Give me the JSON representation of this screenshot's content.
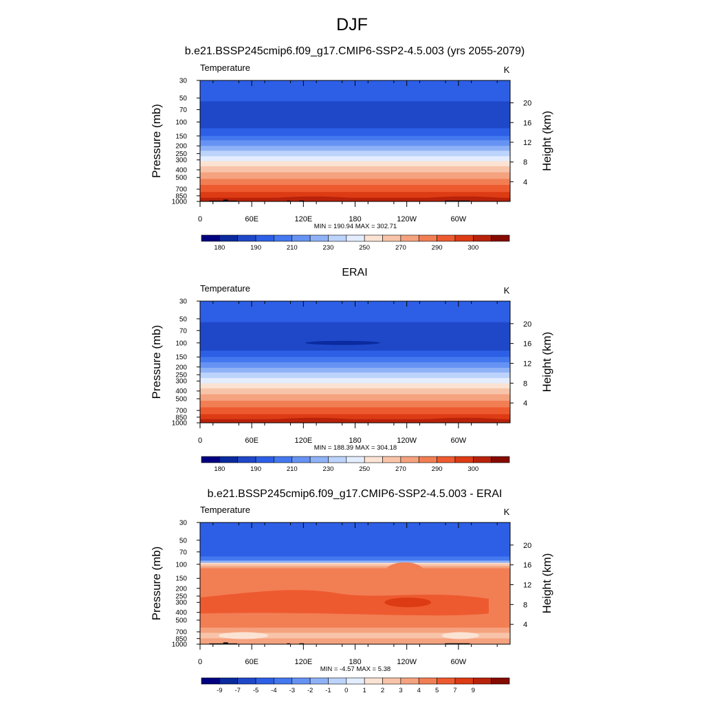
{
  "figure_title": "DJF",
  "chart_data": [
    {
      "type": "heatmap",
      "title": "b.e21.BSSP245cmip6.f09_g17.CMIP6-SSP2-4.5.003 (yrs 2055-2079)",
      "left_label": "Temperature",
      "units": "K",
      "ylabel": "Pressure (mb)",
      "ylabel_right": "Height (km)",
      "pressure_ticks": [
        "30",
        "50",
        "70",
        "100",
        "150",
        "200",
        "250",
        "300",
        "400",
        "500",
        "700",
        "850",
        "1000"
      ],
      "height_ticks": [
        "4",
        "8",
        "12",
        "16",
        "20"
      ],
      "x_ticks": [
        "0",
        "60E",
        "120E",
        "180",
        "120W",
        "60W"
      ],
      "min": 190.94,
      "max": 302.71,
      "minmax_text": "MIN = 190.94  MAX = 302.71",
      "colorbar_labels": [
        "180",
        "190",
        "210",
        "230",
        "250",
        "270",
        "290",
        "300"
      ],
      "field": "zonal-mean",
      "profile": [
        {
          "p": 30,
          "band": 3
        },
        {
          "p": 55,
          "band": 2
        },
        {
          "p": 100,
          "band": 2
        },
        {
          "p": 120,
          "band": 3
        },
        {
          "p": 150,
          "band": 4
        },
        {
          "p": 170,
          "band": 5
        },
        {
          "p": 200,
          "band": 6
        },
        {
          "p": 230,
          "band": 7
        },
        {
          "p": 270,
          "band": 8
        },
        {
          "p": 310,
          "band": 9
        },
        {
          "p": 360,
          "band": 10
        },
        {
          "p": 430,
          "band": 11
        },
        {
          "p": 520,
          "band": 12
        },
        {
          "p": 620,
          "band": 13
        },
        {
          "p": 760,
          "band": 14
        },
        {
          "p": 900,
          "band": 15
        },
        {
          "p": 960,
          "band": 16
        },
        {
          "p": 1000,
          "band": 16
        }
      ],
      "special": "topo"
    },
    {
      "type": "heatmap",
      "title": "ERAI",
      "left_label": "Temperature",
      "units": "K",
      "ylabel": "Pressure (mb)",
      "ylabel_right": "Height (km)",
      "pressure_ticks": [
        "30",
        "50",
        "70",
        "100",
        "150",
        "200",
        "250",
        "300",
        "400",
        "500",
        "700",
        "850",
        "1000"
      ],
      "height_ticks": [
        "4",
        "8",
        "12",
        "16",
        "20"
      ],
      "x_ticks": [
        "0",
        "60E",
        "120E",
        "180",
        "120W",
        "60W"
      ],
      "min": 188.39,
      "max": 304.18,
      "minmax_text": "MIN = 188.39  MAX = 304.18",
      "colorbar_labels": [
        "180",
        "190",
        "210",
        "230",
        "250",
        "270",
        "290",
        "300"
      ],
      "field": "zonal-mean",
      "profile": [
        {
          "p": 30,
          "band": 3
        },
        {
          "p": 45,
          "band": 3
        },
        {
          "p": 55,
          "band": 2
        },
        {
          "p": 100,
          "band": 2
        },
        {
          "p": 125,
          "band": 3
        },
        {
          "p": 150,
          "band": 4
        },
        {
          "p": 175,
          "band": 5
        },
        {
          "p": 205,
          "band": 6
        },
        {
          "p": 235,
          "band": 7
        },
        {
          "p": 275,
          "band": 8
        },
        {
          "p": 320,
          "band": 9
        },
        {
          "p": 370,
          "band": 10
        },
        {
          "p": 440,
          "band": 11
        },
        {
          "p": 530,
          "band": 12
        },
        {
          "p": 640,
          "band": 13
        },
        {
          "p": 780,
          "band": 14
        },
        {
          "p": 900,
          "band": 15
        },
        {
          "p": 960,
          "band": 16
        },
        {
          "p": 1000,
          "band": 16
        }
      ],
      "special": "cold-core"
    },
    {
      "type": "heatmap",
      "title": "b.e21.BSSP245cmip6.f09_g17.CMIP6-SSP2-4.5.003 - ERAI",
      "left_label": "Temperature",
      "units": "K",
      "ylabel": "Pressure (mb)",
      "ylabel_right": "Height (km)",
      "pressure_ticks": [
        "30",
        "50",
        "70",
        "100",
        "150",
        "200",
        "250",
        "300",
        "400",
        "500",
        "700",
        "850",
        "1000"
      ],
      "height_ticks": [
        "4",
        "8",
        "12",
        "16",
        "20"
      ],
      "x_ticks": [
        "0",
        "60E",
        "120E",
        "180",
        "120W",
        "60W"
      ],
      "min": -4.57,
      "max": 5.38,
      "minmax_text": "MIN =  -4.57  MAX =   5.38",
      "colorbar_labels": [
        "-9",
        "-7",
        "-5",
        "-4",
        "-3",
        "-2",
        "-1",
        "0",
        "1",
        "2",
        "3",
        "4",
        "5",
        "7",
        "9"
      ],
      "field": "difference",
      "special": "topo"
    }
  ],
  "colors": {
    "palette": [
      "#000080",
      "#0a2a9e",
      "#1f48c8",
      "#2d5fe6",
      "#4478ef",
      "#6693f3",
      "#8fb2f7",
      "#bcd3fb",
      "#e3edff",
      "#fbe3d4",
      "#f8c4a9",
      "#f5a27f",
      "#f27e54",
      "#ee5a2f",
      "#dd3b14",
      "#b8220a",
      "#850a00"
    ],
    "topography": "#000000",
    "frame": "#000000"
  }
}
